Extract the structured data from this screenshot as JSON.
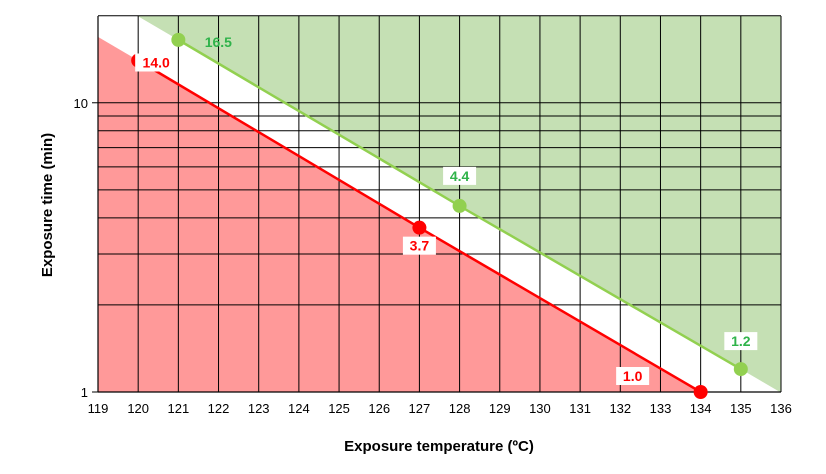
{
  "chart_data": {
    "type": "line",
    "xlabel": "Exposure temperature (ºC)",
    "ylabel": "Exposure time (min)",
    "xlim": [
      119,
      136
    ],
    "ylim": [
      1,
      20
    ],
    "y_scale": "log",
    "x_ticks": [
      "119",
      "120",
      "121",
      "122",
      "123",
      "124",
      "125",
      "126",
      "127",
      "128",
      "129",
      "130",
      "131",
      "132",
      "133",
      "134",
      "135",
      "136"
    ],
    "y_ticks": [
      "1",
      "10"
    ],
    "grid": true,
    "series": [
      {
        "color": "#ff0000",
        "fill_color": "#ff9999",
        "fill": "below",
        "points": [
          {
            "x": 120,
            "y": 14.0,
            "label": "14.0"
          },
          {
            "x": 127,
            "y": 3.7,
            "label": "3.7"
          },
          {
            "x": 134,
            "y": 1.0,
            "label": "1.0"
          }
        ]
      },
      {
        "color": "#92d050",
        "fill_color": "#c5e0b4",
        "fill": "above",
        "label_color": "#2fb34a",
        "points": [
          {
            "x": 121,
            "y": 16.5,
            "label": "16.5"
          },
          {
            "x": 128,
            "y": 4.4,
            "label": "4.4"
          },
          {
            "x": 135,
            "y": 1.2,
            "label": "1.2"
          }
        ]
      }
    ]
  }
}
